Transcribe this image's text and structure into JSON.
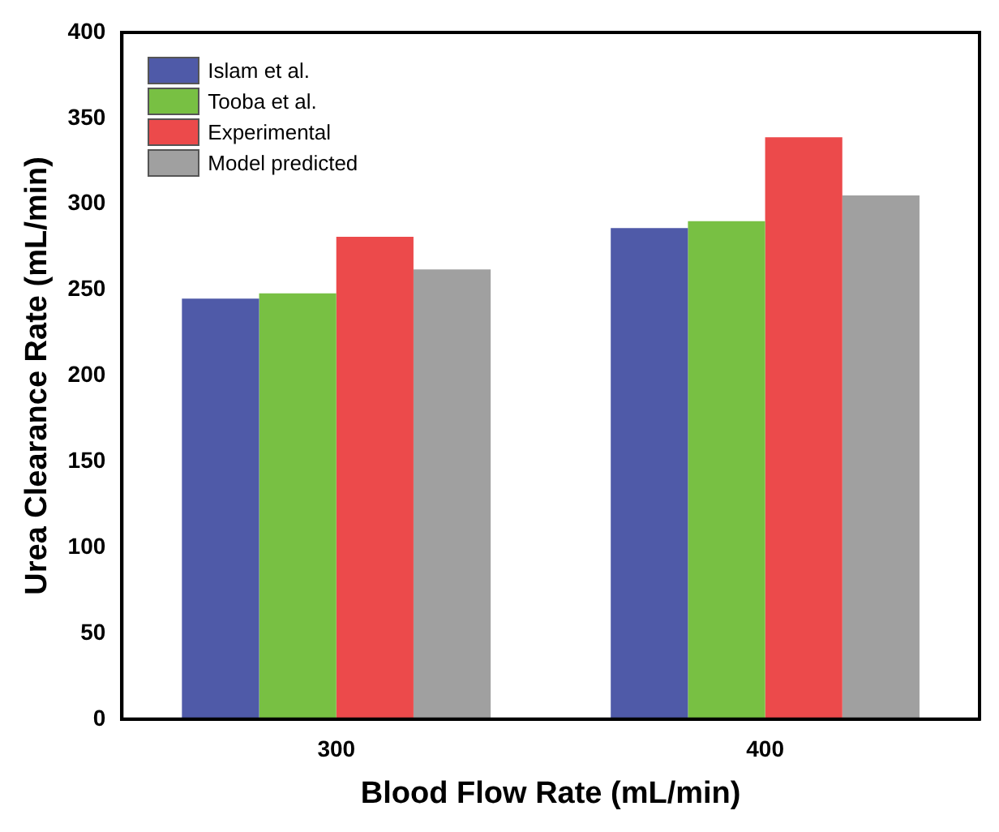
{
  "chart_data": {
    "type": "bar",
    "xlabel": "Blood Flow Rate (mL/min)",
    "ylabel": "Urea Clearance Rate (mL/min)",
    "categories": [
      "300",
      "400"
    ],
    "series": [
      {
        "name": "Islam et al.",
        "color": "#4f5aa8",
        "values": [
          245,
          286
        ]
      },
      {
        "name": "Tooba et al.",
        "color": "#78c043",
        "values": [
          248,
          290
        ]
      },
      {
        "name": "Experimental",
        "color": "#ec4a4b",
        "values": [
          281,
          339
        ]
      },
      {
        "name": "Model predicted",
        "color": "#a0a0a0",
        "values": [
          262,
          305
        ]
      }
    ],
    "ylim": [
      0,
      400
    ],
    "yticks": [
      0,
      50,
      100,
      150,
      200,
      250,
      300,
      350,
      400
    ],
    "grid": false,
    "legend": "top left"
  }
}
